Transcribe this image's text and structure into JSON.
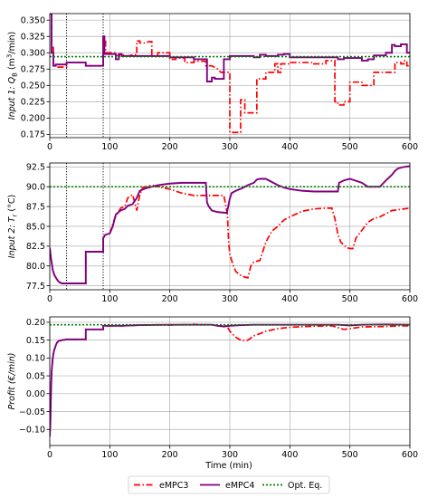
{
  "colors": {
    "emPC3": "#ff0000",
    "emPC4": "#800080",
    "opt": "#008000",
    "grid": "#b0b0b0",
    "vline": "#000000"
  },
  "xlabel": "Time (min)",
  "legend": {
    "placement": "bottom-center",
    "items": [
      {
        "label": "eMPC3",
        "color": "#ff0000",
        "style": "dashdot"
      },
      {
        "label": "eMPC4",
        "color": "#800080",
        "style": "solid"
      },
      {
        "label": "Opt. Eq.",
        "color": "#008000",
        "style": "dotted"
      }
    ]
  },
  "chart_data": [
    {
      "type": "line",
      "ylabel_main": "Input 1: ",
      "ylabel_sym": "Q",
      "ylabel_sub": "B",
      "ylabel_unit_pre": " (m",
      "ylabel_sup": "3",
      "ylabel_unit_post": "/min)",
      "xlim": [
        0,
        600
      ],
      "ylim": [
        0.17,
        0.36
      ],
      "xticks": [
        "0",
        "100",
        "200",
        "300",
        "400",
        "500",
        "600"
      ],
      "yticks": [
        "0.175",
        "0.200",
        "0.225",
        "0.250",
        "0.275",
        "0.300",
        "0.325",
        "0.350"
      ],
      "grid": true,
      "vlines": [
        28,
        89
      ],
      "opt_value": 0.294,
      "series": [
        {
          "name": "eMPC3",
          "style": "dashdot",
          "x": [
            0,
            3,
            3,
            6,
            6,
            10,
            10,
            28,
            28,
            60,
            60,
            89,
            89,
            93,
            93,
            100,
            110,
            110,
            120,
            130,
            140,
            145,
            145,
            150,
            150,
            160,
            165,
            170,
            170,
            180,
            180,
            200,
            200,
            210,
            210,
            225,
            225,
            240,
            240,
            260,
            260,
            270,
            270,
            280,
            285,
            290,
            290,
            300,
            300,
            318,
            318,
            325,
            325,
            345,
            345,
            360,
            360,
            375,
            375,
            380,
            380,
            385,
            385,
            400,
            400,
            440,
            440,
            460,
            460,
            475,
            475,
            480,
            480,
            490,
            490,
            500,
            500,
            520,
            520,
            540,
            540,
            575,
            575,
            585,
            585,
            590,
            590,
            595,
            595,
            600
          ],
          "y": [
            0.36,
            0.36,
            0.31,
            0.31,
            0.28,
            0.28,
            0.278,
            0.278,
            0.285,
            0.285,
            0.28,
            0.28,
            0.322,
            0.322,
            0.3,
            0.3,
            0.3,
            0.295,
            0.297,
            0.295,
            0.297,
            0.297,
            0.318,
            0.318,
            0.315,
            0.315,
            0.317,
            0.317,
            0.295,
            0.295,
            0.3,
            0.3,
            0.29,
            0.29,
            0.292,
            0.292,
            0.285,
            0.285,
            0.287,
            0.287,
            0.28,
            0.28,
            0.28,
            0.275,
            0.27,
            0.27,
            0.27,
            0.27,
            0.178,
            0.178,
            0.228,
            0.228,
            0.208,
            0.208,
            0.26,
            0.26,
            0.27,
            0.27,
            0.283,
            0.283,
            0.27,
            0.27,
            0.283,
            0.283,
            0.285,
            0.285,
            0.283,
            0.283,
            0.288,
            0.288,
            0.225,
            0.225,
            0.22,
            0.22,
            0.225,
            0.225,
            0.255,
            0.255,
            0.25,
            0.25,
            0.27,
            0.27,
            0.285,
            0.285,
            0.283,
            0.283,
            0.288,
            0.288,
            0.28,
            0.28
          ]
        },
        {
          "name": "eMPC4",
          "style": "solid",
          "x": [
            0,
            3,
            3,
            6,
            6,
            10,
            10,
            28,
            28,
            60,
            60,
            89,
            89,
            91,
            91,
            110,
            110,
            115,
            115,
            120,
            120,
            200,
            200,
            240,
            240,
            262,
            262,
            270,
            270,
            275,
            275,
            290,
            290,
            300,
            300,
            340,
            340,
            350,
            350,
            360,
            360,
            380,
            380,
            390,
            390,
            400,
            400,
            480,
            480,
            490,
            490,
            520,
            520,
            530,
            530,
            540,
            540,
            560,
            560,
            570,
            570,
            575,
            575,
            585,
            585,
            595,
            595,
            600
          ],
          "y": [
            0.36,
            0.36,
            0.3,
            0.3,
            0.28,
            0.28,
            0.282,
            0.282,
            0.285,
            0.285,
            0.28,
            0.28,
            0.325,
            0.325,
            0.298,
            0.298,
            0.29,
            0.29,
            0.298,
            0.298,
            0.295,
            0.295,
            0.293,
            0.293,
            0.29,
            0.29,
            0.256,
            0.256,
            0.262,
            0.262,
            0.26,
            0.26,
            0.29,
            0.29,
            0.295,
            0.295,
            0.293,
            0.293,
            0.297,
            0.297,
            0.295,
            0.295,
            0.297,
            0.297,
            0.298,
            0.298,
            0.293,
            0.293,
            0.29,
            0.29,
            0.292,
            0.292,
            0.288,
            0.288,
            0.29,
            0.29,
            0.296,
            0.296,
            0.3,
            0.3,
            0.312,
            0.312,
            0.31,
            0.31,
            0.313,
            0.313,
            0.3,
            0.3
          ]
        }
      ]
    },
    {
      "type": "line",
      "ylabel_main": "Input 2: ",
      "ylabel_sym": "T",
      "ylabel_sub": "r",
      "ylabel_unit_pre": " (°C)",
      "ylabel_sup": "",
      "ylabel_unit_post": "",
      "xlim": [
        0,
        600
      ],
      "ylim": [
        77.0,
        93.0
      ],
      "xticks": [
        "0",
        "100",
        "200",
        "300",
        "400",
        "500",
        "600"
      ],
      "yticks": [
        "77.5",
        "80.0",
        "82.5",
        "85.0",
        "87.5",
        "90.0",
        "92.5"
      ],
      "grid": true,
      "vlines": [
        28,
        89
      ],
      "opt_value": 90.0,
      "series": [
        {
          "name": "eMPC3",
          "style": "dashdot",
          "x": [
            0,
            2,
            5,
            8,
            12,
            15,
            20,
            25,
            28,
            45,
            60,
            60,
            89,
            89,
            92,
            95,
            100,
            108,
            112,
            118,
            125,
            130,
            138,
            145,
            150,
            155,
            160,
            170,
            180,
            200,
            220,
            240,
            270,
            290,
            296,
            298,
            300,
            305,
            310,
            320,
            325,
            330,
            335,
            340,
            345,
            350,
            360,
            370,
            380,
            390,
            400,
            420,
            440,
            460,
            470,
            475,
            480,
            485,
            495,
            500,
            505,
            510,
            520,
            530,
            540,
            550,
            560,
            570,
            580,
            590,
            600
          ],
          "y": [
            82.3,
            81.0,
            79.5,
            78.8,
            78.3,
            78.0,
            77.8,
            77.8,
            77.8,
            77.8,
            77.8,
            81.8,
            81.8,
            83.5,
            83.9,
            84.0,
            84.1,
            86.0,
            86.5,
            87.3,
            87.5,
            88.6,
            89.0,
            87.0,
            89.0,
            89.9,
            90.0,
            90.2,
            90.0,
            89.7,
            89.2,
            88.9,
            88.9,
            88.9,
            86.5,
            83.0,
            81.5,
            80.2,
            79.3,
            78.7,
            78.6,
            78.5,
            80.0,
            80.5,
            80.6,
            80.7,
            83.0,
            84.4,
            85.0,
            85.8,
            86.2,
            86.9,
            87.2,
            87.3,
            87.3,
            86.0,
            84.0,
            83.0,
            82.3,
            82.2,
            82.2,
            83.5,
            84.5,
            85.5,
            86.0,
            86.2,
            86.6,
            87.0,
            87.1,
            87.2,
            87.3
          ]
        },
        {
          "name": "eMPC4",
          "style": "solid",
          "x": [
            0,
            2,
            5,
            8,
            12,
            15,
            20,
            25,
            28,
            45,
            60,
            60,
            89,
            89,
            92,
            95,
            100,
            105,
            110,
            118,
            125,
            130,
            138,
            145,
            150,
            160,
            170,
            180,
            200,
            220,
            240,
            260,
            262,
            265,
            270,
            280,
            295,
            300,
            303,
            310,
            320,
            330,
            340,
            345,
            350,
            360,
            370,
            380,
            390,
            400,
            420,
            440,
            460,
            475,
            480,
            482,
            490,
            500,
            520,
            530,
            540,
            550,
            560,
            570,
            575,
            580,
            590,
            600
          ],
          "y": [
            82.3,
            81.0,
            79.5,
            78.8,
            78.3,
            78.0,
            77.8,
            77.8,
            77.8,
            77.8,
            77.8,
            81.8,
            81.8,
            83.5,
            83.9,
            84.0,
            84.1,
            85.0,
            86.5,
            87.0,
            87.2,
            87.6,
            87.8,
            88.6,
            89.5,
            89.8,
            90.0,
            90.2,
            90.4,
            90.5,
            90.5,
            90.5,
            88.0,
            87.5,
            87.0,
            86.8,
            86.7,
            88.5,
            89.2,
            89.5,
            89.8,
            90.2,
            90.5,
            90.9,
            91.0,
            91.0,
            90.6,
            90.2,
            89.9,
            89.7,
            89.5,
            89.4,
            89.4,
            89.4,
            89.4,
            90.5,
            90.8,
            91.0,
            90.5,
            90.0,
            90.0,
            90.0,
            90.8,
            91.5,
            92.0,
            92.3,
            92.5,
            92.6
          ]
        }
      ]
    },
    {
      "type": "line",
      "ylabel_main": "Profit (€/min)",
      "ylabel_sym": "",
      "ylabel_sub": "",
      "ylabel_unit_pre": "",
      "ylabel_sup": "",
      "ylabel_unit_post": "",
      "xlim": [
        0,
        600
      ],
      "ylim": [
        -0.145,
        0.215
      ],
      "xticks": [
        "0",
        "100",
        "200",
        "300",
        "400",
        "500",
        "600"
      ],
      "xlabel_shown": true,
      "yticks": [
        "−0.10",
        "−0.05",
        "0.00",
        "0.05",
        "0.10",
        "0.15",
        "0.20"
      ],
      "grid": true,
      "vlines": [],
      "opt_value": 0.193,
      "series": [
        {
          "name": "eMPC3",
          "style": "dashdot",
          "x": [
            0,
            1,
            2,
            3,
            5,
            7,
            10,
            12,
            15,
            20,
            25,
            28,
            40,
            60,
            60,
            89,
            89,
            100,
            120,
            150,
            180,
            200,
            220,
            240,
            260,
            270,
            280,
            295,
            300,
            310,
            320,
            330,
            340,
            350,
            360,
            380,
            400,
            440,
            470,
            480,
            490,
            500,
            520,
            560,
            580,
            600
          ],
          "y": [
            -0.12,
            -0.08,
            0.0,
            0.06,
            0.1,
            0.12,
            0.135,
            0.143,
            0.148,
            0.15,
            0.151,
            0.152,
            0.152,
            0.152,
            0.18,
            0.18,
            0.19,
            0.19,
            0.19,
            0.192,
            0.193,
            0.192,
            0.193,
            0.194,
            0.193,
            0.193,
            0.19,
            0.19,
            0.175,
            0.158,
            0.148,
            0.15,
            0.162,
            0.168,
            0.175,
            0.182,
            0.186,
            0.189,
            0.19,
            0.185,
            0.18,
            0.182,
            0.187,
            0.188,
            0.19,
            0.19
          ]
        },
        {
          "name": "eMPC4",
          "style": "solid",
          "x": [
            0,
            1,
            2,
            3,
            5,
            7,
            10,
            12,
            15,
            20,
            25,
            28,
            40,
            60,
            60,
            89,
            89,
            100,
            120,
            150,
            200,
            250,
            270,
            280,
            290,
            300,
            320,
            340,
            360,
            400,
            440,
            480,
            500,
            520,
            560,
            600
          ],
          "y": [
            -0.12,
            -0.08,
            0.0,
            0.06,
            0.1,
            0.12,
            0.135,
            0.143,
            0.148,
            0.15,
            0.151,
            0.152,
            0.152,
            0.152,
            0.18,
            0.18,
            0.19,
            0.19,
            0.19,
            0.192,
            0.193,
            0.193,
            0.193,
            0.19,
            0.188,
            0.19,
            0.192,
            0.193,
            0.193,
            0.193,
            0.193,
            0.193,
            0.191,
            0.193,
            0.194,
            0.193
          ]
        }
      ]
    }
  ]
}
